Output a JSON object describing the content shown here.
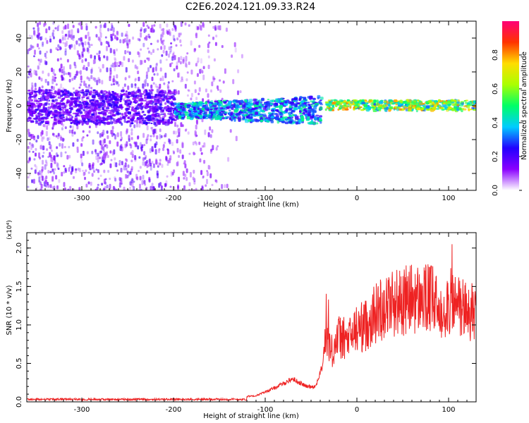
{
  "figure": {
    "title": "C2E6.2024.121.09.33.R24"
  },
  "chart_data": [
    {
      "type": "heatmap",
      "title": "",
      "xlabel": "Height of straight line (km)",
      "ylabel": "Frequency (Hz)",
      "xlim": [
        -360,
        130
      ],
      "ylim": [
        -50,
        50
      ],
      "x_ticks": [
        -300,
        -200,
        -100,
        0,
        100
      ],
      "y_ticks": [
        -40,
        -20,
        0,
        20,
        40
      ],
      "colorbar": {
        "label": "Normalized spectral amplitude",
        "range": [
          0,
          1
        ],
        "ticks": [
          "0.0",
          "0.2",
          "0.4",
          "0.6",
          "0.8"
        ],
        "colormap": [
          "#ffffff",
          "#8a00ff",
          "#2200ff",
          "#00ccff",
          "#00ff66",
          "#aaff00",
          "#ffdd00",
          "#ff3300",
          "#ff0077"
        ]
      },
      "description_features": [
        {
          "x_range": [
            -360,
            -120
          ],
          "freq_range": [
            -50,
            50
          ],
          "amplitude": 0.05
        },
        {
          "x_range": [
            -360,
            -200
          ],
          "freq_center": 0,
          "freq_halfwidth": 10,
          "amplitude": 0.18
        },
        {
          "x_range": [
            -200,
            -40
          ],
          "freq_center": -2,
          "freq_halfwidth": 7,
          "amplitude": 0.35
        },
        {
          "x_range": [
            -35,
            130
          ],
          "freq_center": 1,
          "freq_halfwidth": 3,
          "amplitude": 0.6
        }
      ]
    },
    {
      "type": "line",
      "title": "",
      "xlabel": "Height of straight line (km)",
      "ylabel": "SNR (10 * v/v)",
      "y_multiplier": "(x10⁴)",
      "xlim": [
        -360,
        130
      ],
      "ylim": [
        0,
        2.2
      ],
      "x_ticks": [
        -300,
        -200,
        -100,
        0,
        100
      ],
      "y_ticks": [
        "0.0",
        "0.5",
        "1.0",
        "1.5",
        "2.0"
      ],
      "color": "#ee2222",
      "x": [
        -360,
        -300,
        -250,
        -200,
        -150,
        -110,
        -90,
        -70,
        -55,
        -45,
        -38,
        -33,
        -28,
        -20,
        -10,
        0,
        10,
        20,
        30,
        40,
        50,
        60,
        70,
        80,
        90,
        100,
        110,
        120,
        130
      ],
      "y": [
        0.02,
        0.03,
        0.03,
        0.04,
        0.05,
        0.08,
        0.18,
        0.3,
        0.2,
        0.2,
        0.45,
        0.95,
        0.65,
        0.85,
        0.8,
        0.95,
        1.0,
        1.15,
        1.25,
        1.3,
        1.3,
        1.35,
        1.32,
        1.35,
        1.2,
        1.3,
        1.25,
        1.2,
        1.1
      ]
    }
  ]
}
